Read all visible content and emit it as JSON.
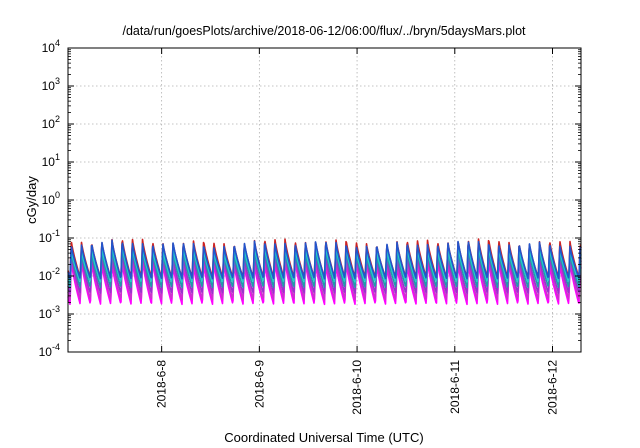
{
  "chart_data": {
    "type": "line",
    "title": "/data/run/goesPlots/archive/2018-06-12/06:00/flux/../bryn/5daysMars.plot",
    "xlabel": "Coordinated Universal Time (UTC)",
    "ylabel": "cGy/day",
    "y_scale": "log",
    "ylim": [
      0.0001,
      10000
    ],
    "xlim": [
      "2018-06-07T01:00",
      "2018-06-12T07:00"
    ],
    "y_ticks": [
      {
        "base": "10",
        "exp": "-4"
      },
      {
        "base": "10",
        "exp": "-3"
      },
      {
        "base": "10",
        "exp": "-2"
      },
      {
        "base": "10",
        "exp": "-1"
      },
      {
        "base": "10",
        "exp": "0"
      },
      {
        "base": "10",
        "exp": "1"
      },
      {
        "base": "10",
        "exp": "2"
      },
      {
        "base": "10",
        "exp": "3"
      },
      {
        "base": "10",
        "exp": "4"
      }
    ],
    "y_tick_values": [
      0.0001,
      0.001,
      0.01,
      0.1,
      1,
      10,
      100,
      1000,
      10000
    ],
    "x_ticks": [
      {
        "label": "2018-6-8",
        "value": "2018-06-08T00:00"
      },
      {
        "label": "2018-6-9",
        "value": "2018-06-09T00:00"
      },
      {
        "label": "2018-6-10",
        "value": "2018-06-10T00:00"
      },
      {
        "label": "2018-6-11",
        "value": "2018-06-11T00:00"
      },
      {
        "label": "2018-6-12",
        "value": "2018-06-12T00:00"
      }
    ],
    "grid": true,
    "legend": "none",
    "periodic_pattern_hours": 2.5,
    "series": [
      {
        "color": "#ff00ff",
        "peak": 0.022,
        "trough": 0.0018
      },
      {
        "color": "#cc33cc",
        "peak": 0.028,
        "trough": 0.0024
      },
      {
        "color": "#9933cc",
        "peak": 0.035,
        "trough": 0.0035
      },
      {
        "color": "#cc2222",
        "peak": 0.085,
        "trough": 0.009
      },
      {
        "color": "#2299aa",
        "peak": 0.045,
        "trough": 0.005
      },
      {
        "color": "#22cccc",
        "peak": 0.055,
        "trough": 0.007
      },
      {
        "color": "#2255cc",
        "peak": 0.075,
        "trough": 0.0085
      }
    ]
  }
}
